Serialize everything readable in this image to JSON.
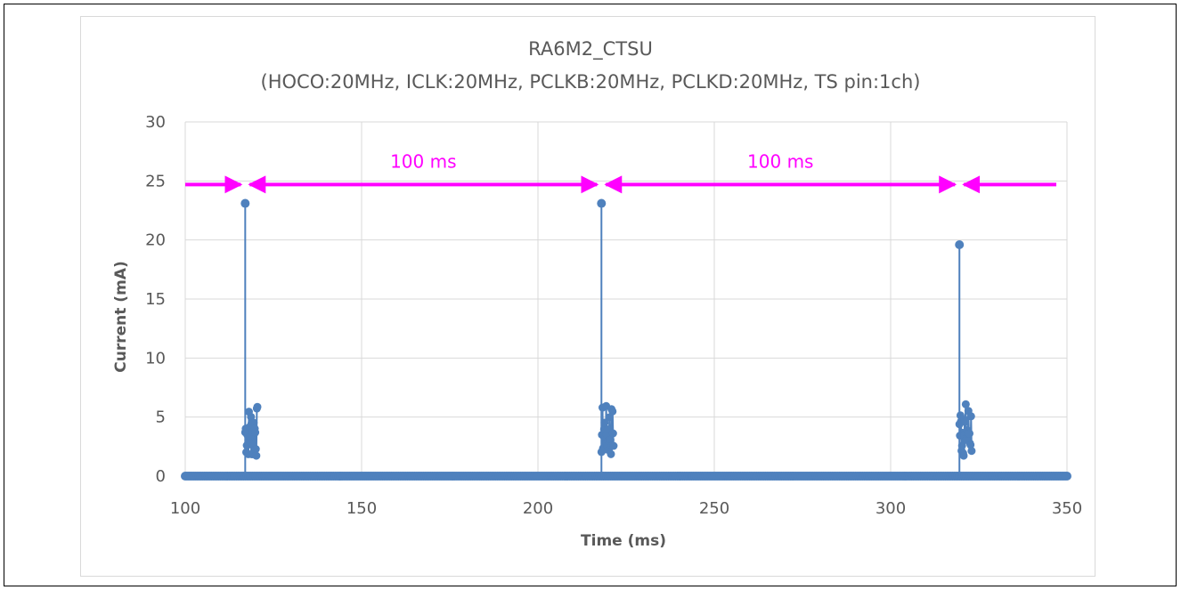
{
  "colors": {
    "series": "#4f81bd",
    "annotation": "#ff00ff",
    "grid": "#d9d9d9",
    "text": "#595959"
  },
  "chart_data": {
    "type": "scatter",
    "title": "RA6M2_CTSU",
    "subtitle": "(HOCO:20MHz, ICLK:20MHz, PCLKB:20MHz, PCLKD:20MHz, TS pin:1ch)",
    "xlabel": "Time (ms)",
    "ylabel": "Current (mA)",
    "xlim": [
      100,
      350
    ],
    "ylim": [
      0,
      30
    ],
    "xticks": [
      "100",
      "150",
      "200",
      "250",
      "300",
      "350"
    ],
    "yticks": [
      "0",
      "5",
      "10",
      "15",
      "20",
      "25",
      "30"
    ],
    "grid": true,
    "series": [
      {
        "baseline_current": 0,
        "peaks": [
          {
            "x": 117,
            "y": 23.1
          },
          {
            "x": 218,
            "y": 23.1
          },
          {
            "x": 319.5,
            "y": 19.6
          }
        ],
        "bursts": [
          {
            "x_start": 117,
            "x_end": 120.5,
            "max": 6
          },
          {
            "x_start": 218,
            "x_end": 221.5,
            "max": 6
          },
          {
            "x_start": 319.5,
            "x_end": 323,
            "max": 6.3
          }
        ]
      }
    ],
    "annotations": {
      "period_labels": [
        "100 ms",
        "100 ms"
      ],
      "arrow_y": 24.7,
      "markers_x": [
        117,
        218,
        319.5
      ]
    }
  }
}
